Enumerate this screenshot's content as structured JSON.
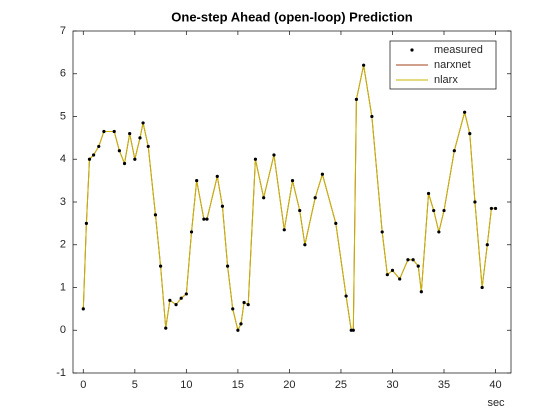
{
  "chart_data": {
    "type": "line",
    "title": "One-step Ahead (open-loop) Prediction",
    "xlabel": "sec",
    "x": [
      0,
      0.3,
      0.6,
      1,
      1.5,
      2,
      3,
      3.5,
      4,
      4.5,
      5,
      5.5,
      5.8,
      6.3,
      7,
      7.5,
      8,
      8.4,
      9,
      9.5,
      10,
      10.5,
      11,
      11.7,
      12,
      13,
      13.5,
      14,
      14.5,
      15,
      15.3,
      15.6,
      16,
      16.7,
      17.5,
      18.5,
      19.5,
      20.3,
      21,
      21.5,
      22.5,
      23.2,
      24.5,
      25.5,
      26,
      26.2,
      26.5,
      27.2,
      28,
      29,
      29.5,
      30,
      30.7,
      31.5,
      32,
      32.5,
      32.8,
      33.5,
      34,
      34.5,
      35,
      36,
      37,
      37.5,
      38,
      38.7,
      39.2,
      39.6,
      40
    ],
    "series": [
      {
        "name": "measured",
        "color": "#000000",
        "marker": "dot",
        "values": [
          0.5,
          2.5,
          4.0,
          4.1,
          4.3,
          4.65,
          4.65,
          4.2,
          3.9,
          4.6,
          4.0,
          4.5,
          4.85,
          4.3,
          2.7,
          1.5,
          0.05,
          0.7,
          0.6,
          0.75,
          0.85,
          2.3,
          3.5,
          2.6,
          2.6,
          3.6,
          2.9,
          1.5,
          0.5,
          0.0,
          0.15,
          0.65,
          0.6,
          4.0,
          3.1,
          4.1,
          2.35,
          3.5,
          2.8,
          2.0,
          3.1,
          3.65,
          2.5,
          0.8,
          0.0,
          0.0,
          5.4,
          6.2,
          5.0,
          2.3,
          1.3,
          1.4,
          1.2,
          1.65,
          1.65,
          1.5,
          0.9,
          3.2,
          2.8,
          2.3,
          2.8,
          4.2,
          5.1,
          4.6,
          3.0,
          1.0,
          2.0,
          2.85,
          2.85
        ]
      },
      {
        "name": "narxnet",
        "color": "#a0401a",
        "marker": "line",
        "values": [
          0.5,
          2.5,
          4.0,
          4.1,
          4.3,
          4.65,
          4.65,
          4.2,
          3.9,
          4.6,
          4.0,
          4.5,
          4.85,
          4.3,
          2.7,
          1.5,
          0.05,
          0.7,
          0.6,
          0.75,
          0.85,
          2.3,
          3.5,
          2.6,
          2.6,
          3.6,
          2.9,
          1.5,
          0.5,
          0.0,
          0.15,
          0.65,
          0.6,
          4.0,
          3.1,
          4.1,
          2.35,
          3.5,
          2.8,
          2.0,
          3.1,
          3.65,
          2.5,
          0.8,
          0.0,
          0.0,
          5.4,
          6.2,
          5.0,
          2.3,
          1.3,
          1.4,
          1.2,
          1.65,
          1.65,
          1.5,
          0.9,
          3.2,
          2.8,
          2.3,
          2.8,
          4.2,
          5.1,
          4.6,
          3.0,
          1.0,
          2.0,
          2.85,
          2.85
        ]
      },
      {
        "name": "nlarx",
        "color": "#c8b400",
        "marker": "line",
        "values": [
          0.5,
          2.5,
          4.0,
          4.1,
          4.3,
          4.65,
          4.65,
          4.2,
          3.9,
          4.6,
          4.0,
          4.5,
          4.85,
          4.3,
          2.7,
          1.5,
          0.05,
          0.7,
          0.6,
          0.75,
          0.85,
          2.3,
          3.5,
          2.6,
          2.6,
          3.6,
          2.9,
          1.5,
          0.5,
          0.0,
          0.15,
          0.65,
          0.6,
          4.0,
          3.1,
          4.1,
          2.35,
          3.5,
          2.8,
          2.0,
          3.1,
          3.65,
          2.5,
          0.8,
          0.0,
          0.0,
          5.4,
          6.2,
          5.0,
          2.3,
          1.3,
          1.4,
          1.2,
          1.65,
          1.65,
          1.5,
          0.9,
          3.2,
          2.8,
          2.3,
          2.8,
          4.2,
          5.1,
          4.6,
          3.0,
          1.0,
          2.0,
          2.85,
          2.85
        ]
      }
    ],
    "xlim": [
      -1,
      41.5
    ],
    "xticks": [
      0,
      5,
      10,
      15,
      20,
      25,
      30,
      35,
      40
    ],
    "ylim": [
      -1,
      7
    ],
    "yticks": [
      -1,
      0,
      1,
      2,
      3,
      4,
      5,
      6,
      7
    ],
    "grid": false,
    "legend": "upper right"
  }
}
